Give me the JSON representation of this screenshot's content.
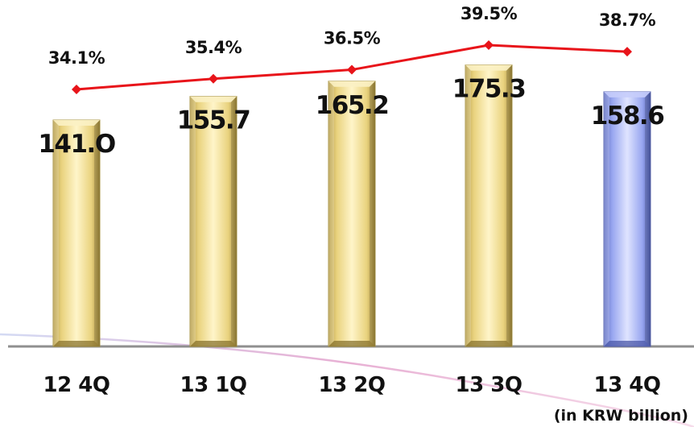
{
  "chart_data": {
    "type": "bar",
    "categories": [
      "12 4Q",
      "13 1Q",
      "13 2Q",
      "13 3Q",
      "13 4Q"
    ],
    "series": [
      {
        "values": [
          141.0,
          155.7,
          165.2,
          175.3,
          158.6
        ],
        "value_labels": [
          "141.O",
          "155.7",
          "165.2",
          "175.3",
          "158.6"
        ],
        "colors": [
          "#F2D97A",
          "#F2D97A",
          "#F2D97A",
          "#F2D97A",
          "#8C9BE8"
        ]
      },
      {
        "type": "line",
        "values": [
          34.1,
          35.4,
          36.5,
          39.5,
          38.7
        ],
        "value_labels": [
          "34.1%",
          "35.4%",
          "36.5%",
          "39.5%",
          "38.7%"
        ],
        "color": "#E8141A"
      }
    ],
    "unit_label": "(in KRW billion)",
    "title": "",
    "xlabel": "",
    "ylabel": "",
    "grid": false,
    "legend": "none"
  }
}
